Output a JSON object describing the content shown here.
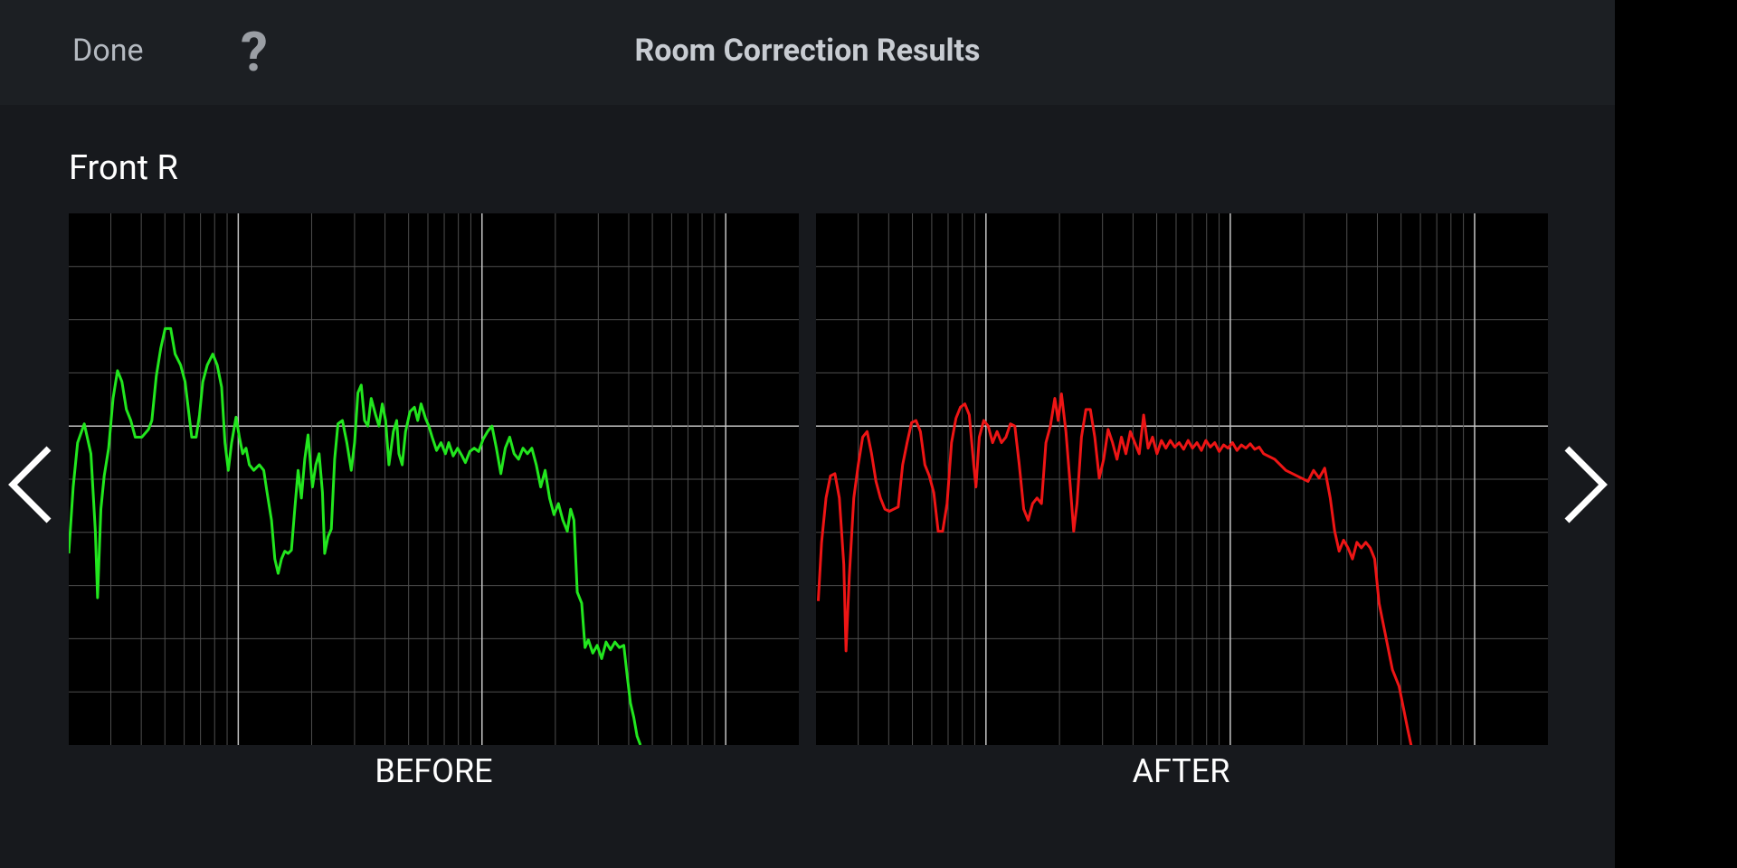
{
  "header": {
    "done": "Done",
    "help": "?",
    "title": "Room Correction Results"
  },
  "section": {
    "title": "Front R"
  },
  "panels": [
    {
      "label": "BEFORE"
    },
    {
      "label": "AFTER"
    }
  ]
}
